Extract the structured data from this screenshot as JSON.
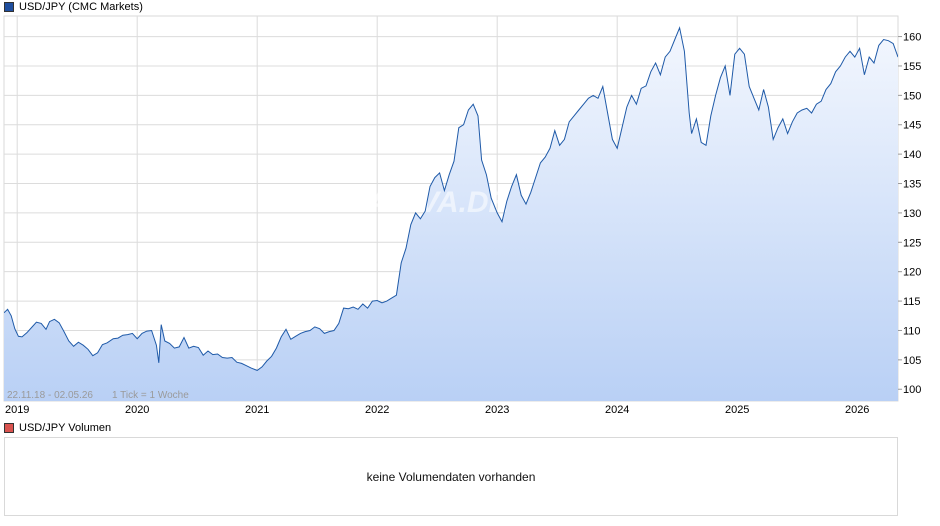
{
  "price_legend": {
    "label": "USD/JPY (CMC Markets)",
    "color": "#1f4e9e"
  },
  "volume_legend": {
    "label": "USD/JPY Volumen",
    "color": "#d9534f"
  },
  "watermark": "ARIVA.DE",
  "range_info": "22.11.18 - 02.05.26",
  "tick_info": "1 Tick = 1 Woche",
  "volume_panel": {
    "message": "keine Volumendaten vorhanden"
  },
  "colors": {
    "line": "#1f5aa8",
    "area_top": "#f3f7fe",
    "area_bottom": "#b9d0f5",
    "grid": "#dcdcdc"
  },
  "chart_data": {
    "type": "area",
    "title": "USD/JPY (CMC Markets)",
    "xlim": [
      2018.89,
      2026.34
    ],
    "ylim": [
      98,
      163.5
    ],
    "x_ticks": [
      2019,
      2020,
      2021,
      2022,
      2023,
      2024,
      2025,
      2026
    ],
    "x_tick_labels": [
      "2019",
      "2020",
      "2021",
      "2022",
      "2023",
      "2024",
      "2025",
      "2026"
    ],
    "y_ticks": [
      100,
      105,
      110,
      115,
      120,
      125,
      130,
      135,
      140,
      145,
      150,
      155,
      160
    ],
    "grid": true,
    "series": [
      {
        "name": "USD/JPY",
        "points": [
          [
            2018.89,
            113.0
          ],
          [
            2018.92,
            113.6
          ],
          [
            2018.95,
            112.5
          ],
          [
            2018.98,
            110.3
          ],
          [
            2019.01,
            109.0
          ],
          [
            2019.04,
            108.9
          ],
          [
            2019.08,
            109.6
          ],
          [
            2019.12,
            110.5
          ],
          [
            2019.16,
            111.4
          ],
          [
            2019.2,
            111.2
          ],
          [
            2019.24,
            110.2
          ],
          [
            2019.27,
            111.5
          ],
          [
            2019.31,
            111.9
          ],
          [
            2019.35,
            111.3
          ],
          [
            2019.39,
            109.8
          ],
          [
            2019.43,
            108.2
          ],
          [
            2019.47,
            107.3
          ],
          [
            2019.51,
            108.0
          ],
          [
            2019.55,
            107.5
          ],
          [
            2019.59,
            106.8
          ],
          [
            2019.63,
            105.7
          ],
          [
            2019.67,
            106.2
          ],
          [
            2019.71,
            107.6
          ],
          [
            2019.75,
            107.9
          ],
          [
            2019.8,
            108.6
          ],
          [
            2019.84,
            108.7
          ],
          [
            2019.88,
            109.2
          ],
          [
            2019.92,
            109.3
          ],
          [
            2019.96,
            109.5
          ],
          [
            2020.0,
            108.6
          ],
          [
            2020.04,
            109.5
          ],
          [
            2020.08,
            109.9
          ],
          [
            2020.12,
            110.0
          ],
          [
            2020.16,
            107.5
          ],
          [
            2020.18,
            104.5
          ],
          [
            2020.2,
            111.0
          ],
          [
            2020.23,
            108.2
          ],
          [
            2020.27,
            107.8
          ],
          [
            2020.31,
            107.0
          ],
          [
            2020.35,
            107.2
          ],
          [
            2020.39,
            108.8
          ],
          [
            2020.43,
            107.0
          ],
          [
            2020.47,
            107.3
          ],
          [
            2020.51,
            107.1
          ],
          [
            2020.55,
            105.8
          ],
          [
            2020.59,
            106.5
          ],
          [
            2020.63,
            105.9
          ],
          [
            2020.67,
            106.0
          ],
          [
            2020.71,
            105.4
          ],
          [
            2020.75,
            105.3
          ],
          [
            2020.79,
            105.4
          ],
          [
            2020.83,
            104.6
          ],
          [
            2020.87,
            104.4
          ],
          [
            2020.91,
            104.0
          ],
          [
            2020.95,
            103.6
          ],
          [
            2021.0,
            103.2
          ],
          [
            2021.04,
            103.8
          ],
          [
            2021.08,
            104.8
          ],
          [
            2021.12,
            105.6
          ],
          [
            2021.16,
            107.0
          ],
          [
            2021.2,
            108.9
          ],
          [
            2021.24,
            110.2
          ],
          [
            2021.28,
            108.5
          ],
          [
            2021.32,
            109.0
          ],
          [
            2021.36,
            109.5
          ],
          [
            2021.4,
            109.8
          ],
          [
            2021.44,
            110.0
          ],
          [
            2021.48,
            110.6
          ],
          [
            2021.52,
            110.3
          ],
          [
            2021.56,
            109.5
          ],
          [
            2021.6,
            109.8
          ],
          [
            2021.64,
            110.0
          ],
          [
            2021.68,
            111.2
          ],
          [
            2021.72,
            113.8
          ],
          [
            2021.76,
            113.7
          ],
          [
            2021.8,
            114.0
          ],
          [
            2021.84,
            113.6
          ],
          [
            2021.88,
            114.5
          ],
          [
            2021.92,
            113.8
          ],
          [
            2021.96,
            115.0
          ],
          [
            2022.0,
            115.1
          ],
          [
            2022.04,
            114.7
          ],
          [
            2022.08,
            115.0
          ],
          [
            2022.12,
            115.5
          ],
          [
            2022.16,
            116.0
          ],
          [
            2022.2,
            121.5
          ],
          [
            2022.24,
            124.0
          ],
          [
            2022.28,
            128.0
          ],
          [
            2022.32,
            130.0
          ],
          [
            2022.36,
            129.0
          ],
          [
            2022.4,
            130.3
          ],
          [
            2022.44,
            134.5
          ],
          [
            2022.48,
            136.0
          ],
          [
            2022.52,
            136.8
          ],
          [
            2022.56,
            133.8
          ],
          [
            2022.6,
            136.5
          ],
          [
            2022.64,
            138.8
          ],
          [
            2022.68,
            144.5
          ],
          [
            2022.72,
            145.0
          ],
          [
            2022.76,
            147.5
          ],
          [
            2022.8,
            148.5
          ],
          [
            2022.84,
            146.5
          ],
          [
            2022.87,
            139.0
          ],
          [
            2022.91,
            136.5
          ],
          [
            2022.95,
            132.5
          ],
          [
            2023.0,
            130.0
          ],
          [
            2023.04,
            128.5
          ],
          [
            2023.08,
            132.0
          ],
          [
            2023.12,
            134.5
          ],
          [
            2023.16,
            136.5
          ],
          [
            2023.2,
            133.0
          ],
          [
            2023.24,
            131.5
          ],
          [
            2023.28,
            133.5
          ],
          [
            2023.32,
            136.0
          ],
          [
            2023.36,
            138.5
          ],
          [
            2023.4,
            139.5
          ],
          [
            2023.44,
            141.0
          ],
          [
            2023.48,
            144.0
          ],
          [
            2023.52,
            141.5
          ],
          [
            2023.56,
            142.5
          ],
          [
            2023.6,
            145.5
          ],
          [
            2023.64,
            146.5
          ],
          [
            2023.68,
            147.5
          ],
          [
            2023.72,
            148.5
          ],
          [
            2023.76,
            149.5
          ],
          [
            2023.8,
            150.0
          ],
          [
            2023.84,
            149.5
          ],
          [
            2023.88,
            151.5
          ],
          [
            2023.92,
            147.0
          ],
          [
            2023.96,
            142.5
          ],
          [
            2024.0,
            141.0
          ],
          [
            2024.04,
            144.5
          ],
          [
            2024.08,
            148.0
          ],
          [
            2024.12,
            150.0
          ],
          [
            2024.16,
            148.5
          ],
          [
            2024.2,
            151.2
          ],
          [
            2024.24,
            151.6
          ],
          [
            2024.28,
            154.0
          ],
          [
            2024.32,
            155.5
          ],
          [
            2024.36,
            153.5
          ],
          [
            2024.4,
            156.5
          ],
          [
            2024.44,
            157.5
          ],
          [
            2024.48,
            159.5
          ],
          [
            2024.52,
            161.5
          ],
          [
            2024.56,
            157.5
          ],
          [
            2024.6,
            147.0
          ],
          [
            2024.62,
            143.5
          ],
          [
            2024.66,
            146.0
          ],
          [
            2024.7,
            142.0
          ],
          [
            2024.74,
            141.5
          ],
          [
            2024.78,
            146.5
          ],
          [
            2024.82,
            150.0
          ],
          [
            2024.86,
            153.0
          ],
          [
            2024.9,
            155.0
          ],
          [
            2024.94,
            150.0
          ],
          [
            2024.98,
            157.0
          ],
          [
            2025.02,
            158.0
          ],
          [
            2025.06,
            157.0
          ],
          [
            2025.1,
            151.5
          ],
          [
            2025.14,
            149.5
          ],
          [
            2025.18,
            147.5
          ],
          [
            2025.22,
            151.0
          ],
          [
            2025.26,
            148.0
          ],
          [
            2025.3,
            142.5
          ],
          [
            2025.34,
            144.5
          ],
          [
            2025.38,
            146.0
          ],
          [
            2025.42,
            143.5
          ],
          [
            2025.46,
            145.5
          ],
          [
            2025.5,
            147.0
          ],
          [
            2025.54,
            147.5
          ],
          [
            2025.58,
            147.8
          ],
          [
            2025.62,
            147.0
          ],
          [
            2025.66,
            148.5
          ],
          [
            2025.7,
            149.0
          ],
          [
            2025.74,
            151.0
          ],
          [
            2025.78,
            152.0
          ],
          [
            2025.82,
            154.0
          ],
          [
            2025.86,
            155.0
          ],
          [
            2025.9,
            156.5
          ],
          [
            2025.94,
            157.5
          ],
          [
            2025.98,
            156.5
          ],
          [
            2026.02,
            158.0
          ],
          [
            2026.06,
            153.5
          ],
          [
            2026.1,
            156.5
          ],
          [
            2026.14,
            155.5
          ],
          [
            2026.18,
            158.5
          ],
          [
            2026.22,
            159.5
          ],
          [
            2026.26,
            159.3
          ],
          [
            2026.3,
            158.8
          ],
          [
            2026.34,
            156.5
          ]
        ]
      }
    ]
  }
}
